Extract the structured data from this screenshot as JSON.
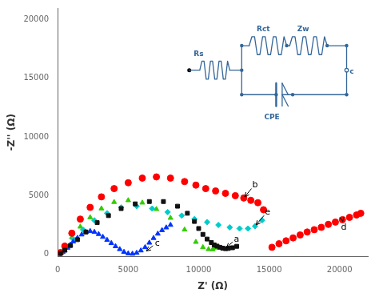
{
  "chart_data": {
    "type": "scatter",
    "xlabel": "Z' (Ω)",
    "ylabel": "-Z'' (Ω)",
    "xlim": [
      0,
      22000
    ],
    "ylim": [
      -200,
      21000
    ],
    "xticks": [
      0,
      5000,
      10000,
      15000,
      20000
    ],
    "yticks": [
      0,
      5000,
      10000,
      15000,
      20000
    ],
    "grid": false,
    "series": [
      {
        "color": "#111111",
        "marker": "square",
        "x": [
          200,
          500,
          900,
          1400,
          2000,
          2800,
          3600,
          4500,
          5500,
          6500,
          7500,
          8500,
          9200,
          9700,
          10000,
          10300,
          10600,
          10900,
          11100,
          11300,
          11500,
          11700,
          11900,
          12100,
          12400,
          12700
        ],
        "values": [
          80,
          350,
          750,
          1250,
          1900,
          2700,
          3300,
          3900,
          4300,
          4500,
          4500,
          4100,
          3500,
          2800,
          2200,
          1700,
          1300,
          1000,
          800,
          700,
          600,
          520,
          480,
          500,
          560,
          680
        ]
      },
      {
        "color": "#ff0000",
        "marker": "circle",
        "x": [
          200,
          500,
          1000,
          1600,
          2300,
          3100,
          4000,
          5000,
          6000,
          7000,
          8000,
          9000,
          9800,
          10500,
          11200,
          11900,
          12600,
          13200,
          13700,
          14200,
          14600
        ],
        "values": [
          150,
          700,
          1800,
          3000,
          4000,
          4900,
          5600,
          6100,
          6500,
          6600,
          6500,
          6200,
          5900,
          5600,
          5400,
          5200,
          5000,
          4800,
          4600,
          4400,
          3800
        ]
      },
      {
        "color": "#ff0000",
        "marker": "circle",
        "x": [
          15200,
          15700,
          16200,
          16700,
          17200,
          17700,
          18200,
          18700,
          19200,
          19700,
          20200,
          20700,
          21200,
          21500
        ],
        "values": [
          600,
          900,
          1150,
          1400,
          1650,
          1900,
          2100,
          2300,
          2550,
          2750,
          2950,
          3150,
          3350,
          3500
        ]
      },
      {
        "color": "#0033ff",
        "marker": "triangle",
        "x": [
          100,
          200,
          350,
          500,
          700,
          900,
          1100,
          1400,
          1700,
          2000,
          2300,
          2600,
          2900,
          3200,
          3500,
          3800,
          4100,
          4400,
          4700,
          5000,
          5300,
          5600,
          5900,
          6200,
          6500,
          6800,
          7100,
          7400,
          7700,
          8000
        ],
        "values": [
          30,
          80,
          180,
          320,
          550,
          820,
          1080,
          1400,
          1680,
          1900,
          1980,
          1900,
          1720,
          1480,
          1220,
          950,
          680,
          430,
          200,
          70,
          40,
          120,
          320,
          600,
          980,
          1380,
          1750,
          2050,
          2280,
          2500
        ]
      },
      {
        "color": "#00cccc",
        "marker": "diamond",
        "x": [
          200,
          600,
          1100,
          1800,
          2600,
          3500,
          4500,
          5600,
          6700,
          7800,
          8800,
          9700,
          10600,
          11400,
          12200,
          12900,
          13500,
          14000,
          14500
        ],
        "values": [
          100,
          550,
          1300,
          2100,
          2900,
          3500,
          4000,
          4100,
          3900,
          3600,
          3300,
          3000,
          2750,
          2500,
          2300,
          2200,
          2200,
          2400,
          2900
        ]
      },
      {
        "color": "#33cc00",
        "marker": "triangle",
        "x": [
          200,
          500,
          1000,
          1600,
          2300,
          3100,
          4000,
          5000,
          6000,
          7000,
          8000,
          9000,
          9800,
          10300,
          10700,
          11000,
          11200
        ],
        "values": [
          100,
          600,
          1450,
          2350,
          3150,
          3900,
          4450,
          4600,
          4400,
          3850,
          3100,
          2100,
          1050,
          600,
          430,
          420,
          560
        ]
      }
    ],
    "annotations": [
      {
        "text": "a",
        "x": 11900,
        "y": 480,
        "text_x": 12500,
        "text_y": 1100
      },
      {
        "text": "b",
        "x": 13200,
        "y": 4800,
        "text_x": 13800,
        "text_y": 5700
      },
      {
        "text": "c",
        "x": 6200,
        "y": 200,
        "text_x": 6900,
        "text_y": 750
      },
      {
        "text": "d",
        "x": 20200,
        "y": 2950,
        "text_x": 20100,
        "text_y": 2100
      },
      {
        "text": "e",
        "x": 14000,
        "y": 2400,
        "text_x": 14700,
        "text_y": 3400
      }
    ],
    "circuit": {
      "color": "#336699",
      "labels": [
        "Rs",
        "Rct",
        "Zw",
        "CPE",
        "c"
      ]
    }
  }
}
